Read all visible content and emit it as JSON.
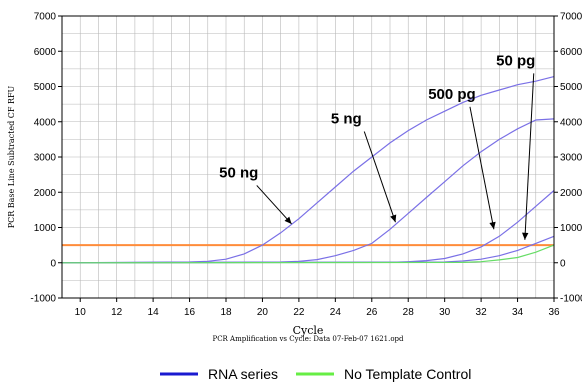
{
  "chart_data": {
    "type": "line",
    "title": "",
    "xlabel": "Cycle",
    "ylabel": "PCR Base Line Subtracted CF RFU",
    "caption": "PCR Amplification vs Cycle: Data 07-Feb-07 1621.opd",
    "xlim": [
      9,
      36
    ],
    "ylim": [
      -1000,
      7000
    ],
    "x_ticks": [
      10,
      12,
      14,
      16,
      18,
      20,
      22,
      24,
      26,
      28,
      30,
      32,
      34,
      36
    ],
    "y_ticks": [
      -1000,
      0,
      1000,
      2000,
      3000,
      4000,
      5000,
      6000,
      7000
    ],
    "grid": true,
    "threshold": 500,
    "colors": {
      "rna": "#7a70e6",
      "ntc": "#66dd66",
      "threshold": "#ff8c3a",
      "grid": "#b8b8b8",
      "legend_rna": "#1a1ad0",
      "legend_ntc": "#66ee44"
    },
    "series": [
      {
        "name": "50 ng",
        "group": "rna",
        "x": [
          9,
          16,
          17,
          18,
          19,
          20,
          21,
          22,
          23,
          24,
          25,
          26,
          27,
          28,
          29,
          30,
          31,
          32,
          33,
          34,
          35,
          36
        ],
        "y": [
          0,
          20,
          40,
          100,
          250,
          500,
          850,
          1250,
          1700,
          2150,
          2600,
          3000,
          3400,
          3750,
          4050,
          4300,
          4550,
          4750,
          4900,
          5050,
          5150,
          5280
        ]
      },
      {
        "name": "5 ng",
        "group": "rna",
        "x": [
          9,
          21,
          22,
          23,
          24,
          25,
          26,
          27,
          28,
          29,
          30,
          31,
          32,
          33,
          34,
          35,
          36
        ],
        "y": [
          0,
          20,
          40,
          90,
          200,
          350,
          550,
          950,
          1400,
          1850,
          2300,
          2750,
          3150,
          3500,
          3800,
          4050,
          4080
        ]
      },
      {
        "name": "500 pg",
        "group": "rna",
        "x": [
          9,
          27,
          28,
          29,
          30,
          31,
          32,
          33,
          34,
          35,
          36
        ],
        "y": [
          0,
          10,
          30,
          60,
          120,
          250,
          450,
          750,
          1150,
          1600,
          2050
        ]
      },
      {
        "name": "50 pg",
        "group": "rna",
        "x": [
          9,
          30,
          31,
          32,
          33,
          34,
          35,
          36
        ],
        "y": [
          0,
          20,
          50,
          100,
          200,
          350,
          550,
          750
        ]
      },
      {
        "name": "No Template Control",
        "group": "ntc",
        "x": [
          9,
          31,
          32,
          33,
          34,
          35,
          36
        ],
        "y": [
          0,
          10,
          30,
          80,
          150,
          300,
          500
        ]
      }
    ],
    "annotations": [
      {
        "text": "50 ng",
        "label_at": [
          18.7,
          2420
        ],
        "arrow_to": [
          21.6,
          1100
        ]
      },
      {
        "text": "5 ng",
        "label_at": [
          24.6,
          3950
        ],
        "arrow_to": [
          27.3,
          1150
        ]
      },
      {
        "text": "500 pg",
        "label_at": [
          30.4,
          4650
        ],
        "arrow_to": [
          32.7,
          950
        ]
      },
      {
        "text": "50 pg",
        "label_at": [
          33.9,
          5600
        ],
        "arrow_to": [
          34.4,
          650
        ]
      }
    ],
    "legend": {
      "placement": "bottom",
      "items": [
        {
          "label": "RNA series",
          "color_key": "legend_rna"
        },
        {
          "label": "No Template Control",
          "color_key": "legend_ntc"
        }
      ]
    }
  }
}
